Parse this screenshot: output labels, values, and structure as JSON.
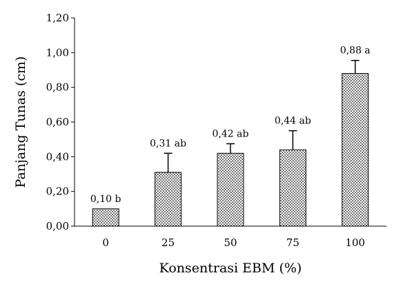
{
  "chart_data": {
    "type": "bar",
    "categories": [
      "0",
      "25",
      "50",
      "75",
      "100"
    ],
    "values": [
      0.1,
      0.31,
      0.42,
      0.44,
      0.88
    ],
    "error": [
      0.0,
      0.11,
      0.055,
      0.11,
      0.075
    ],
    "data_labels": [
      "0,10 b",
      "0,31 ab",
      "0,42 ab",
      "0,44 ab",
      "0,88 a"
    ],
    "xlabel": "Konsentrasi EBM (%)",
    "ylabel": "Panjang Tunas (cm)",
    "ylim": [
      0,
      1.2
    ],
    "yticks": [
      0,
      0.2,
      0.4,
      0.6,
      0.8,
      1.0,
      1.2
    ],
    "ytick_labels": [
      "0,00",
      "0,20",
      "0,40",
      "0,60",
      "0,80",
      "1,00",
      "1,20"
    ],
    "grid": false,
    "bar_pattern": "dotted",
    "colors": {
      "bar_fill": "#ffffff",
      "bar_dots": "#000000",
      "axis": "#000000"
    }
  }
}
